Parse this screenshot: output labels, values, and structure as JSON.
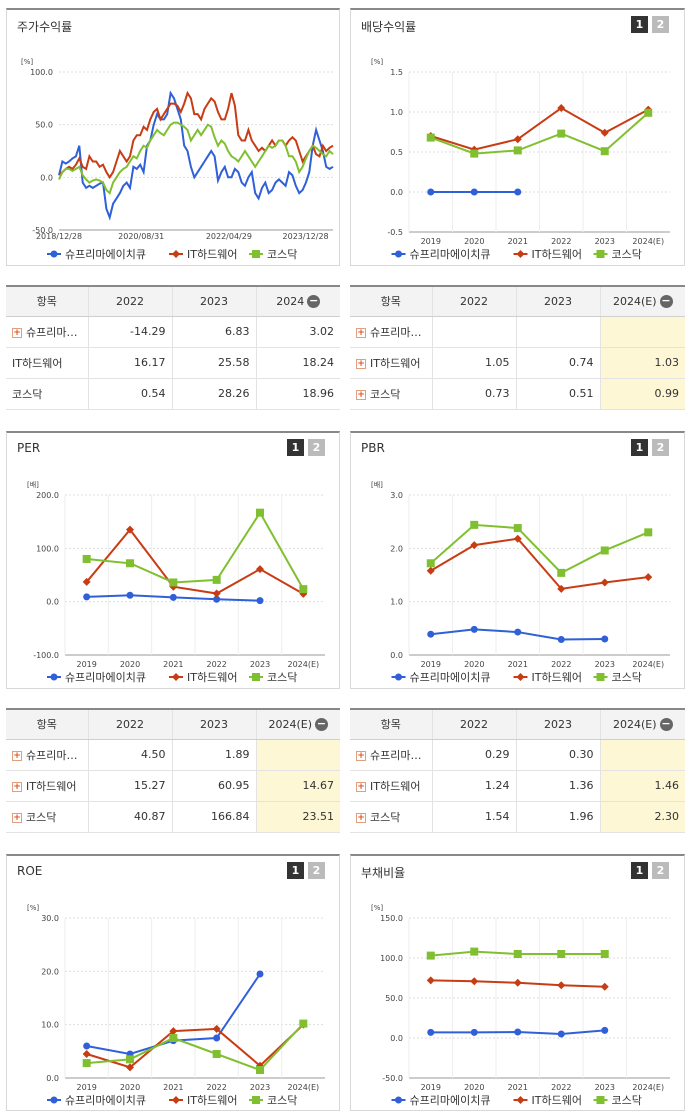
{
  "colors": {
    "stock": "#3060d8",
    "it": "#c83c14",
    "kosdaq": "#80c030"
  },
  "legend": [
    "슈프리마에이치큐",
    "IT하드웨어",
    "코스닥"
  ],
  "pager": [
    "1",
    "2"
  ],
  "price": {
    "title": "주가수익률",
    "unit": "[%]",
    "chart_data": {
      "type": "line",
      "title": "주가수익률",
      "ylim": [
        -50,
        100
      ],
      "yticks": [
        "100.0",
        "50.0",
        "0.0",
        "-50.0"
      ],
      "xticks": [
        "2018/12/28",
        "2020/08/31",
        "2022/04/29",
        "2023/12/28"
      ],
      "series": [
        {
          "name": "슈프리마에이치큐",
          "values": [
            2,
            15,
            13,
            15,
            18,
            20,
            30,
            -5,
            -10,
            -8,
            -10,
            -8,
            -6,
            -5,
            -30,
            -38,
            -25,
            -20,
            -15,
            -8,
            -5,
            -10,
            10,
            8,
            12,
            5,
            30,
            35,
            50,
            60,
            55,
            55,
            60,
            80,
            75,
            65,
            55,
            30,
            25,
            10,
            0,
            5,
            10,
            15,
            20,
            25,
            20,
            -3,
            5,
            10,
            0,
            0,
            8,
            5,
            -5,
            -8,
            0,
            5,
            -15,
            -20,
            -10,
            -5,
            -15,
            -12,
            -5,
            -2,
            -5,
            -8,
            5,
            2,
            -8,
            -15,
            -12,
            -5,
            5,
            30,
            45,
            35,
            25,
            10,
            8,
            10
          ]
        },
        {
          "name": "IT하드웨어",
          "values": [
            3,
            5,
            8,
            10,
            8,
            12,
            18,
            10,
            8,
            20,
            15,
            15,
            10,
            12,
            5,
            0,
            5,
            15,
            25,
            20,
            15,
            20,
            35,
            40,
            40,
            48,
            45,
            55,
            62,
            65,
            55,
            60,
            65,
            70,
            70,
            68,
            62,
            70,
            80,
            75,
            60,
            60,
            55,
            65,
            70,
            75,
            72,
            62,
            55,
            55,
            65,
            80,
            68,
            40,
            35,
            35,
            45,
            35,
            30,
            25,
            28,
            25,
            30,
            35,
            30,
            35,
            35,
            30,
            35,
            38,
            35,
            25,
            15,
            20,
            25,
            30,
            22,
            20,
            30,
            25,
            28,
            30
          ]
        },
        {
          "name": "코스닥",
          "values": [
            -2,
            5,
            8,
            8,
            6,
            8,
            10,
            2,
            -2,
            -5,
            -3,
            -2,
            -3,
            -5,
            -12,
            -15,
            -5,
            0,
            5,
            8,
            10,
            15,
            20,
            18,
            25,
            30,
            28,
            35,
            40,
            45,
            42,
            40,
            45,
            50,
            52,
            52,
            50,
            48,
            45,
            35,
            40,
            45,
            40,
            45,
            50,
            48,
            38,
            30,
            35,
            32,
            25,
            20,
            18,
            15,
            20,
            25,
            20,
            15,
            10,
            15,
            20,
            25,
            30,
            28,
            30,
            35,
            35,
            30,
            20,
            20,
            15,
            5,
            10,
            18,
            25,
            30,
            28,
            25,
            22,
            20,
            25,
            22
          ]
        }
      ]
    }
  },
  "dividend": {
    "title": "배당수익률",
    "unit": "[%]",
    "chart_data": {
      "type": "line",
      "title": "배당수익률",
      "categories": [
        "2019",
        "2020",
        "2021",
        "2022",
        "2023",
        "2024(E)"
      ],
      "ylim": [
        -0.5,
        1.5
      ],
      "yticks": [
        "1.5",
        "1.0",
        "0.5",
        "0.0",
        "-0.5"
      ],
      "series": [
        {
          "name": "슈프리마에이치큐",
          "values": [
            0,
            0,
            0,
            null,
            null,
            null
          ]
        },
        {
          "name": "IT하드웨어",
          "values": [
            0.7,
            0.53,
            0.66,
            1.05,
            0.74,
            1.03
          ]
        },
        {
          "name": "코스닥",
          "values": [
            0.68,
            0.48,
            0.52,
            0.73,
            0.51,
            0.99
          ]
        }
      ]
    }
  },
  "table1": {
    "headers": [
      "항목",
      "2022",
      "2023",
      "2024"
    ],
    "rows": [
      {
        "name": "슈프리마…",
        "plus": true,
        "values": [
          "-14.29",
          "6.83",
          "3.02"
        ]
      },
      {
        "name": "IT하드웨어",
        "plus": false,
        "values": [
          "16.17",
          "25.58",
          "18.24"
        ]
      },
      {
        "name": "코스닥",
        "plus": false,
        "values": [
          "0.54",
          "28.26",
          "18.96"
        ]
      }
    ]
  },
  "table2": {
    "headers": [
      "항목",
      "2022",
      "2023",
      "2024(E)"
    ],
    "rows": [
      {
        "name": "슈프리마…",
        "plus": true,
        "values": [
          "",
          "",
          ""
        ]
      },
      {
        "name": "IT하드웨어",
        "plus": true,
        "values": [
          "1.05",
          "0.74",
          "1.03"
        ]
      },
      {
        "name": "코스닥",
        "plus": true,
        "values": [
          "0.73",
          "0.51",
          "0.99"
        ]
      }
    ]
  },
  "per": {
    "title": "PER",
    "unit": "[배]",
    "chart_data": {
      "type": "line",
      "title": "PER",
      "categories": [
        "2019",
        "2020",
        "2021",
        "2022",
        "2023",
        "2024(E)"
      ],
      "ylim": [
        -100,
        200
      ],
      "yticks": [
        "200.0",
        "100.0",
        "0.0",
        "-100.0"
      ],
      "series": [
        {
          "name": "슈프리마에이치큐",
          "values": [
            9,
            12,
            8,
            4.5,
            1.89,
            null
          ]
        },
        {
          "name": "IT하드웨어",
          "values": [
            37,
            135,
            28,
            15.27,
            60.95,
            14.67
          ]
        },
        {
          "name": "코스닥",
          "values": [
            80,
            72,
            36,
            40.87,
            166.84,
            23.51
          ]
        }
      ]
    }
  },
  "pbr": {
    "title": "PBR",
    "unit": "[배]",
    "chart_data": {
      "type": "line",
      "title": "PBR",
      "categories": [
        "2019",
        "2020",
        "2021",
        "2022",
        "2023",
        "2024(E)"
      ],
      "ylim": [
        0,
        3
      ],
      "yticks": [
        "3.0",
        "2.0",
        "1.0",
        "0.0"
      ],
      "series": [
        {
          "name": "슈프리마에이치큐",
          "values": [
            0.39,
            0.48,
            0.43,
            0.29,
            0.3,
            null
          ]
        },
        {
          "name": "IT하드웨어",
          "values": [
            1.58,
            2.06,
            2.18,
            1.24,
            1.36,
            1.46
          ]
        },
        {
          "name": "코스닥",
          "values": [
            1.72,
            2.44,
            2.38,
            1.54,
            1.96,
            2.3
          ]
        }
      ]
    }
  },
  "table3": {
    "headers": [
      "항목",
      "2022",
      "2023",
      "2024(E)"
    ],
    "rows": [
      {
        "name": "슈프리마…",
        "plus": true,
        "values": [
          "4.50",
          "1.89",
          ""
        ]
      },
      {
        "name": "IT하드웨어",
        "plus": true,
        "values": [
          "15.27",
          "60.95",
          "14.67"
        ]
      },
      {
        "name": "코스닥",
        "plus": true,
        "values": [
          "40.87",
          "166.84",
          "23.51"
        ]
      }
    ]
  },
  "table4": {
    "headers": [
      "항목",
      "2022",
      "2023",
      "2024(E)"
    ],
    "rows": [
      {
        "name": "슈프리마…",
        "plus": true,
        "values": [
          "0.29",
          "0.30",
          ""
        ]
      },
      {
        "name": "IT하드웨어",
        "plus": true,
        "values": [
          "1.24",
          "1.36",
          "1.46"
        ]
      },
      {
        "name": "코스닥",
        "plus": true,
        "values": [
          "1.54",
          "1.96",
          "2.30"
        ]
      }
    ]
  },
  "roe": {
    "title": "ROE",
    "unit": "[%]",
    "chart_data": {
      "type": "line",
      "title": "ROE",
      "categories": [
        "2019",
        "2020",
        "2021",
        "2022",
        "2023",
        "2024(E)"
      ],
      "ylim": [
        0,
        30
      ],
      "yticks": [
        "30.0",
        "20.0",
        "10.0",
        "0.0"
      ],
      "series": [
        {
          "name": "슈프리마에이치큐",
          "values": [
            6,
            4.5,
            7,
            7.5,
            19.5,
            null
          ]
        },
        {
          "name": "IT하드웨어",
          "values": [
            4.5,
            2,
            8.8,
            9.2,
            2.3,
            10
          ]
        },
        {
          "name": "코스닥",
          "values": [
            2.8,
            3.5,
            7.5,
            4.5,
            1.5,
            10.2
          ]
        }
      ]
    }
  },
  "debt": {
    "title": "부채비율",
    "unit": "[%]",
    "chart_data": {
      "type": "line",
      "title": "부채비율",
      "categories": [
        "2019",
        "2020",
        "2021",
        "2022",
        "2023",
        "2024(E)"
      ],
      "ylim": [
        -50,
        150
      ],
      "yticks": [
        "150.0",
        "100.0",
        "50.0",
        "0.0",
        "-50.0"
      ],
      "series": [
        {
          "name": "슈프리마에이치큐",
          "values": [
            7,
            7,
            7.5,
            5,
            9.5,
            null
          ]
        },
        {
          "name": "IT하드웨어",
          "values": [
            72,
            71,
            69,
            66,
            64,
            null
          ]
        },
        {
          "name": "코스닥",
          "values": [
            103,
            108,
            105,
            105,
            105,
            null
          ]
        }
      ]
    }
  }
}
